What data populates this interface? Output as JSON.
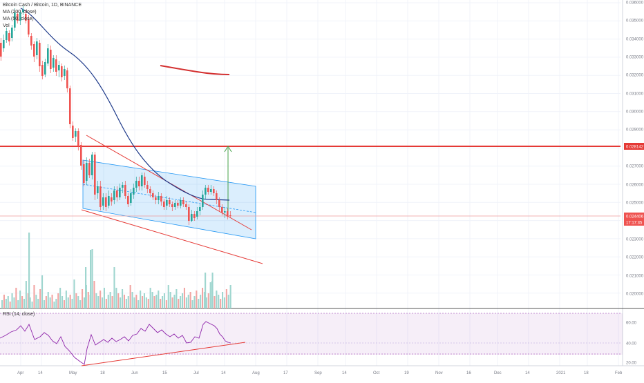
{
  "chart_data": {
    "type": "candlestick",
    "legend": {
      "symbol": "Bitcoin Cash / Bitcoin, 1D, BINANCE",
      "ma200": "MA (200, close)",
      "ma50": "MA (50, close)",
      "vol": "Vol"
    },
    "rsi_label": "RSI (14, close)",
    "price_axis": {
      "range": [
        0.0195,
        0.036
      ],
      "ticks": [
        "0.036000",
        "0.035000",
        "0.034000",
        "0.033000",
        "0.032000",
        "0.031000",
        "0.030000",
        "0.029000",
        "0.028000",
        "0.027000",
        "0.026000",
        "0.025000",
        "0.023000",
        "0.022000",
        "0.021000",
        "0.020000"
      ],
      "markers": [
        {
          "label": "0.028142",
          "color": "#e53935"
        },
        {
          "label": "0.024406",
          "color": "#ef5350"
        },
        {
          "label": "17:17:35",
          "color": "#ef5350"
        }
      ]
    },
    "rsi_axis": {
      "range": [
        15,
        75
      ],
      "ticks": [
        "60.00",
        "40.00",
        "20.00"
      ],
      "upper": 70,
      "lower": 30
    },
    "time_axis": [
      "Apr",
      "14",
      "May",
      "18",
      "Jun",
      "15",
      "Jul",
      "14",
      "Aug",
      "17",
      "Sep",
      "14",
      "Oct",
      "19",
      "Nov",
      "16",
      "Dec",
      "14",
      "2021",
      "18",
      "Feb"
    ],
    "colors": {
      "up": "#26a69a",
      "down": "#ef5350",
      "ma50": "#1e3a8a",
      "ma200": "#d32f2f",
      "channel": "#2196f3",
      "target": "#43a047",
      "rsi": "#8e24aa"
    },
    "series_note": "daily candles Apr–Jul, resistance 0.028142, last 0.024406"
  }
}
